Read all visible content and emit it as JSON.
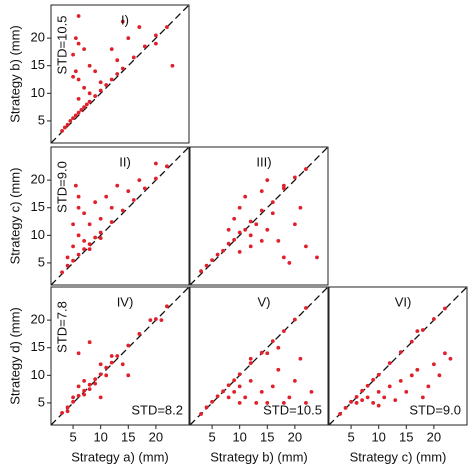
{
  "chart_data": [
    {
      "type": "scatter",
      "label": "I)",
      "std_vertical": "STD=10.5",
      "ylabel": "Strategy b) (mm)",
      "color": "#e0202a",
      "xlim": [
        1,
        26
      ],
      "ylim": [
        1,
        26
      ],
      "yticks": [
        5,
        10,
        15,
        20
      ],
      "x": [
        3,
        3.5,
        4,
        4.5,
        5,
        5.5,
        6,
        6.5,
        7,
        7.5,
        8,
        9,
        10,
        11,
        12,
        13,
        14,
        16,
        18,
        20,
        22,
        5,
        5.5,
        6,
        5,
        6,
        5.5,
        7,
        6,
        7,
        8,
        9,
        10,
        12,
        13,
        15,
        17,
        20,
        23,
        6,
        14,
        8
      ],
      "y": [
        3.2,
        3.8,
        4.3,
        5,
        5.5,
        6,
        6.5,
        7,
        7.5,
        8,
        8.5,
        9.5,
        10.5,
        11.5,
        12.5,
        13.5,
        14.5,
        16.5,
        18.5,
        20.5,
        22,
        13,
        14,
        12.5,
        17,
        19,
        20,
        18,
        9,
        11,
        10,
        14,
        12,
        18,
        16,
        20,
        22,
        19,
        15,
        24,
        23,
        15
      ]
    },
    {
      "type": "scatter",
      "label": "II)",
      "std_vertical": "STD=9.0",
      "ylabel": "Strategy c) (mm)",
      "color": "#e0202a",
      "xlim": [
        1,
        26
      ],
      "ylim": [
        1,
        26
      ],
      "yticks": [
        5,
        10,
        15,
        20
      ],
      "x": [
        3,
        4,
        5,
        6,
        7,
        8,
        9,
        10,
        12,
        14,
        16,
        18,
        20,
        22,
        5,
        5,
        6,
        5.5,
        7,
        7,
        8,
        9,
        10,
        11,
        12,
        13,
        15,
        17,
        20,
        6,
        4,
        8,
        10,
        6
      ],
      "y": [
        3.3,
        4.5,
        5.4,
        6.5,
        7.5,
        8.4,
        9.6,
        10.5,
        12.4,
        14.5,
        16.4,
        18.5,
        20.3,
        22.5,
        8,
        12,
        17,
        19,
        14,
        9,
        12,
        16,
        13,
        17,
        15,
        19,
        18,
        20,
        23,
        10,
        6,
        7.5,
        9.5,
        15
      ]
    },
    {
      "type": "scatter",
      "label": "III)",
      "color": "#e0202a",
      "xlim": [
        1,
        26
      ],
      "ylim": [
        1,
        26
      ],
      "x": [
        3,
        4,
        5,
        6,
        7,
        8,
        9,
        10,
        11,
        12,
        14,
        16,
        18,
        20,
        22,
        8,
        9,
        10,
        11,
        12,
        13,
        14,
        15,
        16,
        17,
        18,
        19,
        20,
        22,
        10,
        12,
        14,
        18,
        21,
        24,
        15
      ],
      "y": [
        3.5,
        4.5,
        5.5,
        6.5,
        7.2,
        8.5,
        9.2,
        10.5,
        11,
        12.5,
        14.5,
        16,
        18.5,
        20.5,
        22,
        11,
        13,
        15,
        17,
        10,
        12,
        18,
        11,
        14,
        9,
        6,
        5,
        12,
        8,
        7,
        8,
        9,
        19,
        15,
        6,
        20
      ]
    },
    {
      "type": "scatter",
      "label": "IV)",
      "std_vertical": "STD=7.8",
      "std_horizontal": "STD=8.2",
      "ylabel": "Strategy d) (mm)",
      "xlabel": "Strategy a) (mm)",
      "color": "#e0202a",
      "xlim": [
        1,
        26
      ],
      "ylim": [
        1,
        26
      ],
      "xticks": [
        5,
        10,
        15,
        20
      ],
      "yticks": [
        5,
        10,
        15,
        20
      ],
      "x": [
        3,
        4,
        5,
        6,
        7,
        8,
        9,
        10,
        11,
        12,
        13,
        15,
        17,
        20,
        22,
        5,
        6,
        7,
        8,
        9,
        10,
        11,
        12,
        14,
        15,
        19,
        21,
        6,
        8,
        10,
        4,
        7
      ],
      "y": [
        3.2,
        4.2,
        5.2,
        6.3,
        7.2,
        8.3,
        9.3,
        10.2,
        11.4,
        12.3,
        13.5,
        15.4,
        17.5,
        20.2,
        22.5,
        6,
        8,
        9,
        7.5,
        8.5,
        12,
        10,
        13.5,
        12,
        10,
        20,
        20,
        14,
        16,
        6,
        3.5,
        6.5
      ]
    },
    {
      "type": "scatter",
      "label": "V)",
      "std_horizontal": "STD=10.5",
      "xlabel": "Strategy b) (mm)",
      "color": "#e0202a",
      "xlim": [
        1,
        26
      ],
      "ylim": [
        1,
        26
      ],
      "xticks": [
        5,
        10,
        15,
        20
      ],
      "x": [
        3,
        4,
        5,
        6,
        7,
        8,
        9,
        10,
        12,
        14,
        16,
        18,
        20,
        22,
        8,
        9,
        10,
        11,
        12,
        13,
        14,
        15,
        16,
        17,
        18,
        19,
        20,
        22,
        23,
        12,
        15,
        17,
        10,
        21
      ],
      "y": [
        3,
        4.2,
        5.2,
        6.2,
        7.1,
        8.2,
        9.1,
        10.2,
        12.2,
        14.1,
        16.2,
        18,
        20.1,
        22.2,
        6,
        7,
        8,
        6,
        9,
        5,
        7,
        5,
        8,
        11,
        5,
        6,
        9,
        5,
        7,
        13,
        14,
        15,
        5,
        13
      ]
    },
    {
      "type": "scatter",
      "label": "VI)",
      "std_horizontal": "STD=9.0",
      "xlabel": "Strategy c) (mm)",
      "color": "#e0202a",
      "xlim": [
        1,
        26
      ],
      "ylim": [
        1,
        26
      ],
      "xticks": [
        5,
        10,
        15,
        20
      ],
      "x": [
        3,
        4,
        5,
        6,
        7,
        8,
        9,
        10,
        12,
        14,
        16,
        18,
        20,
        22,
        6,
        7,
        8,
        9,
        10,
        11,
        12,
        13,
        14,
        15,
        16,
        17,
        18,
        19,
        20,
        21,
        22,
        23,
        10,
        17
      ],
      "y": [
        3,
        4.1,
        5.2,
        6.1,
        7.2,
        8.1,
        9.2,
        10.1,
        12.2,
        14.2,
        16.1,
        18.2,
        20.2,
        22.1,
        5,
        5.5,
        6,
        5,
        7,
        6,
        8,
        5.5,
        9,
        7,
        10,
        11,
        6,
        8,
        12,
        10,
        14,
        13,
        4.5,
        18
      ]
    }
  ]
}
